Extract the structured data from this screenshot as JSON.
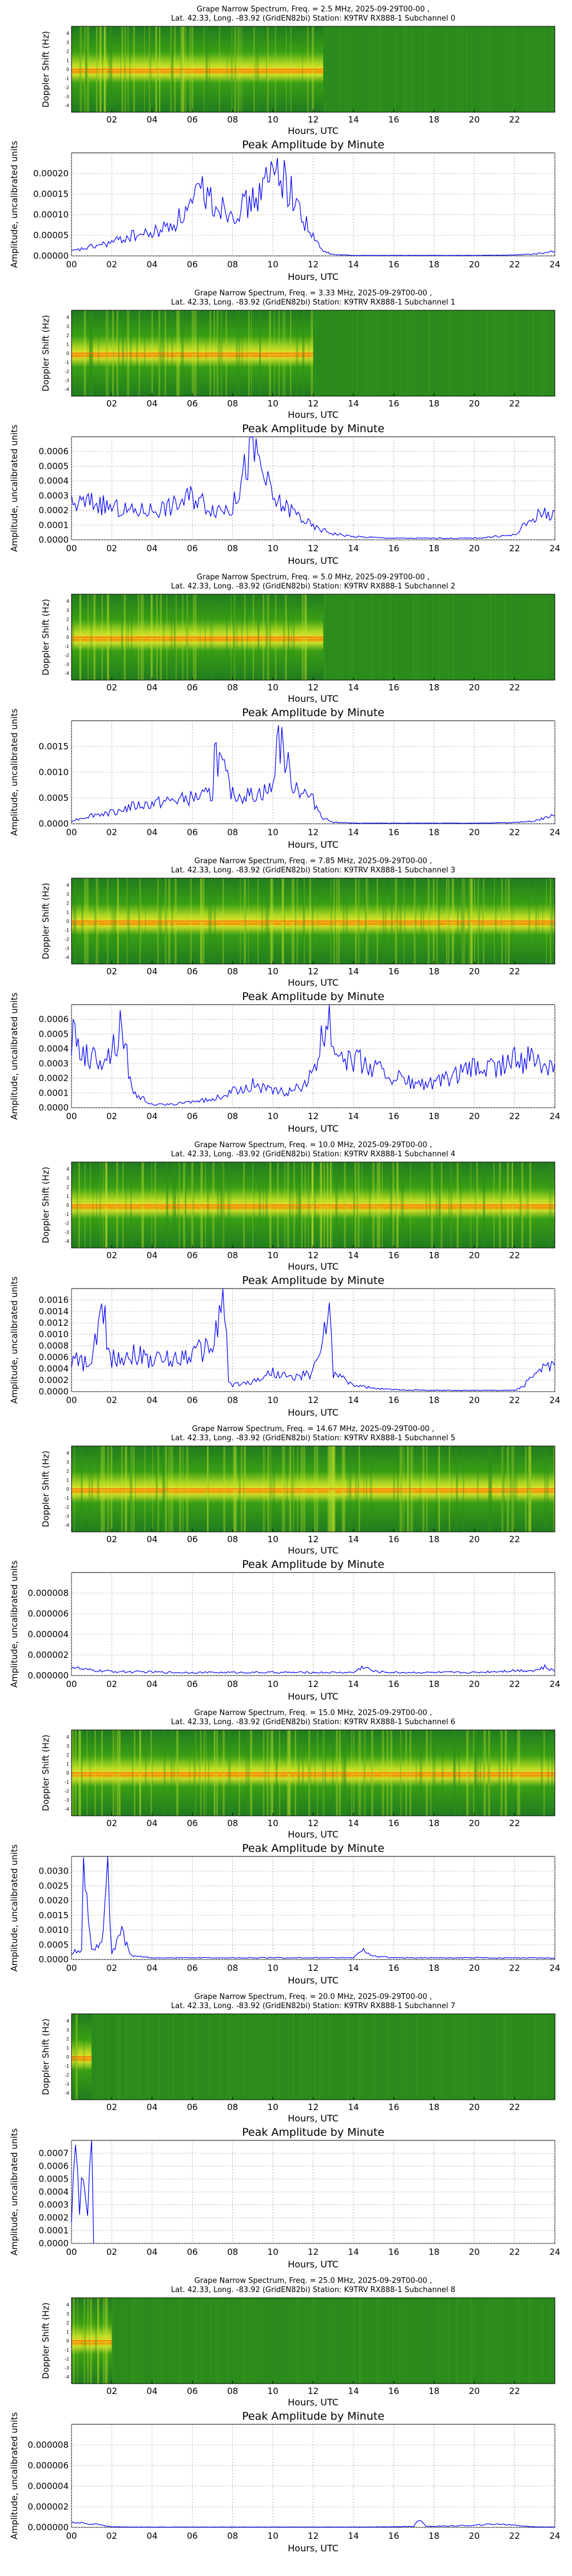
{
  "figure": {
    "spectrogram_common": {
      "ylabel": "Doppler Shift (Hz)",
      "xlabel": "Hours, UTC",
      "xticks": [
        "02",
        "04",
        "06",
        "08",
        "10",
        "12",
        "14",
        "16",
        "18",
        "20",
        "22"
      ],
      "yticks": [
        "4",
        "3",
        "2",
        "1",
        "0",
        "-1",
        "-2",
        "-3",
        "-4"
      ],
      "colormap": [
        "#1f7a1f",
        "#39a10f",
        "#8fcc1a",
        "#e8ee2a",
        "#ff9a00",
        "#e8331a"
      ]
    },
    "amplitude_common": {
      "title": "Peak Amplitude by Minute",
      "ylabel": "Amplitude, uncalibrated units",
      "xlabel": "Hours, UTC",
      "xticks": [
        "00",
        "02",
        "04",
        "06",
        "08",
        "10",
        "12",
        "14",
        "16",
        "18",
        "20",
        "22",
        "24"
      ],
      "line_color": "#0000ff",
      "grid": true
    }
  },
  "chart_data": [
    {
      "type": "heatmap",
      "title_line1": "Grape Narrow Spectrum, Freq. = 2.5 MHz, 2025-09-29T00-00 ,",
      "title_line2": "Lat.  42.33, Long. -83.92 (GridEN82bi) Station: K9TRV RX888-1 Subchannel 0",
      "active_hours": [
        0,
        12.5
      ]
    },
    {
      "type": "line",
      "x_range": [
        0,
        24
      ],
      "ylim": [
        0,
        0.00023
      ],
      "yticks": [
        "0.00000",
        "0.00005",
        "0.00010",
        "0.00015",
        "0.00020"
      ],
      "x": [
        0,
        1,
        2,
        3,
        4,
        5,
        6,
        6.5,
        7,
        8,
        9,
        10,
        10.3,
        11,
        12,
        12.5,
        13,
        14,
        16,
        18,
        20,
        22,
        23,
        24
      ],
      "y": [
        1e-05,
        2e-05,
        3e-05,
        4.5e-05,
        5e-05,
        7e-05,
        0.00011,
        0.00015,
        0.00012,
        0.0001,
        0.00012,
        0.00018,
        0.0002,
        0.00013,
        4e-05,
        1e-05,
        3e-06,
        1e-06,
        1e-06,
        1e-06,
        1e-06,
        2e-06,
        4e-06,
        1e-05
      ]
    },
    {
      "type": "heatmap",
      "title_line1": "Grape Narrow Spectrum, Freq. = 3.33 MHz, 2025-09-29T00-00 ,",
      "title_line2": "Lat.  42.33, Long. -83.92 (GridEN82bi) Station: K9TRV RX888-1 Subchannel 1",
      "active_hours": [
        0,
        12
      ]
    },
    {
      "type": "line",
      "x_range": [
        0,
        24
      ],
      "ylim": [
        0,
        0.00065
      ],
      "yticks": [
        "0.0000",
        "0.0001",
        "0.0002",
        "0.0003",
        "0.0004",
        "0.0005",
        "0.0006"
      ],
      "x": [
        0,
        1,
        2,
        3,
        4,
        5,
        6,
        7,
        8,
        9,
        10,
        11,
        12,
        13,
        14,
        16,
        18,
        20,
        22,
        23,
        24
      ],
      "y": [
        0.00022,
        0.00024,
        0.0002,
        0.00018,
        0.00019,
        0.00021,
        0.00028,
        0.0002,
        0.0002,
        0.0006,
        0.00025,
        0.00018,
        8e-05,
        4e-05,
        2e-05,
        1e-05,
        1e-05,
        1e-05,
        3e-05,
        0.00015,
        0.00018
      ]
    },
    {
      "type": "heatmap",
      "title_line1": "Grape Narrow Spectrum, Freq. = 5.0 MHz, 2025-09-29T00-00 ,",
      "title_line2": "Lat.  42.33, Long. -83.92 (GridEN82bi) Station: K9TRV RX888-1 Subchannel 2",
      "active_hours": [
        0,
        12.5
      ]
    },
    {
      "type": "line",
      "x_range": [
        0,
        24
      ],
      "ylim": [
        0,
        0.0018
      ],
      "yticks": [
        "0.0000",
        "0.0005",
        "0.0010",
        "0.0015"
      ],
      "x": [
        0,
        1,
        2,
        3,
        4,
        5,
        6,
        7,
        7.1,
        8,
        9,
        10,
        10.2,
        11,
        12,
        12.5,
        13,
        14,
        16,
        18,
        20,
        22,
        23,
        24
      ],
      "y": [
        5e-05,
        0.00015,
        0.0002,
        0.0003,
        0.00035,
        0.0004,
        0.00045,
        0.0005,
        0.0013,
        0.0005,
        0.0005,
        0.0006,
        0.0016,
        0.0007,
        0.0004,
        0.0001,
        3e-05,
        1e-05,
        1e-05,
        1e-05,
        1e-05,
        2e-05,
        5e-05,
        0.00015
      ]
    },
    {
      "type": "heatmap",
      "title_line1": "Grape Narrow Spectrum, Freq. = 7.85 MHz, 2025-09-29T00-00 ,",
      "title_line2": "Lat.  42.33, Long. -83.92 (GridEN82bi) Station: K9TRV RX888-1 Subchannel 3",
      "active_hours": [
        0,
        24
      ]
    },
    {
      "type": "line",
      "x_range": [
        0,
        24
      ],
      "ylim": [
        0,
        0.00065
      ],
      "yticks": [
        "0.0000",
        "0.0001",
        "0.0002",
        "0.0003",
        "0.0004",
        "0.0005",
        "0.0006"
      ],
      "x": [
        0,
        1,
        2,
        2.5,
        3,
        4,
        5,
        6,
        7,
        8,
        9,
        10,
        11,
        12,
        12.8,
        13,
        14,
        15,
        16,
        17,
        18,
        19,
        20,
        21,
        22,
        23,
        24
      ],
      "y": [
        0.00045,
        0.0003,
        0.00035,
        0.00055,
        0.0001,
        2e-05,
        2e-05,
        4e-05,
        5e-05,
        0.0001,
        0.00015,
        0.0001,
        0.0001,
        0.0002,
        0.0006,
        0.0004,
        0.0003,
        0.00025,
        0.0002,
        0.00015,
        0.00015,
        0.0002,
        0.00025,
        0.00025,
        0.0003,
        0.0003,
        0.00028
      ]
    },
    {
      "type": "heatmap",
      "title_line1": "Grape Narrow Spectrum, Freq. = 10.0 MHz, 2025-09-29T00-00 ,",
      "title_line2": "Lat.  42.33, Long. -83.92 (GridEN82bi) Station: K9TRV RX888-1 Subchannel 4",
      "active_hours": [
        0,
        24
      ]
    },
    {
      "type": "line",
      "x_range": [
        0,
        24
      ],
      "ylim": [
        0,
        0.0016
      ],
      "yticks": [
        "0.0000",
        "0.0002",
        "0.0004",
        "0.0006",
        "0.0008",
        "0.0010",
        "0.0012",
        "0.0014",
        "0.0016"
      ],
      "x": [
        0,
        1,
        1.5,
        2,
        3,
        4,
        5,
        6,
        7,
        7.6,
        7.8,
        8,
        9,
        10,
        11,
        12,
        12.8,
        13,
        14,
        15,
        16,
        18,
        20,
        22,
        22.5,
        23,
        24
      ],
      "y": [
        0.0005,
        0.0004,
        0.0013,
        0.0005,
        0.0006,
        0.0005,
        0.0005,
        0.0006,
        0.0007,
        0.0015,
        0.00015,
        0.0001,
        0.00015,
        0.0003,
        0.0002,
        0.0003,
        0.0012,
        0.0003,
        0.0001,
        5e-05,
        3e-05,
        2e-05,
        2e-05,
        2e-05,
        0.0001,
        0.0003,
        0.0004
      ]
    },
    {
      "type": "heatmap",
      "title_line1": "Grape Narrow Spectrum, Freq. = 14.67 MHz, 2025-09-29T00-00 ,",
      "title_line2": "Lat.  42.33, Long. -83.92 (GridEN82bi) Station: K9TRV RX888-1 Subchannel 5",
      "active_hours": [
        0,
        24
      ]
    },
    {
      "type": "line",
      "x_range": [
        0,
        24
      ],
      "ylim": [
        0,
        0.0001
      ],
      "yticks": [
        "0.000000",
        "0.000002",
        "0.000004",
        "0.000006",
        "0.000008"
      ],
      "x": [
        0,
        0.5,
        1,
        2,
        3,
        4,
        5,
        6,
        7,
        8,
        9,
        10,
        11,
        12,
        13,
        14,
        14.5,
        15,
        16,
        17,
        18,
        19,
        20,
        21,
        22,
        23,
        23.5,
        24
      ],
      "y": [
        9e-06,
        6e-06,
        5e-06,
        4e-06,
        3.5e-06,
        3.5e-06,
        3e-06,
        3e-06,
        3e-06,
        3e-06,
        3e-06,
        3e-06,
        3e-06,
        3e-06,
        3e-06,
        3e-06,
        9e-06,
        4e-06,
        3e-06,
        3e-06,
        3e-06,
        3e-06,
        3e-06,
        4e-06,
        5e-06,
        5e-06,
        8e-06,
        4e-06
      ]
    },
    {
      "type": "heatmap",
      "title_line1": "Grape Narrow Spectrum, Freq. = 15.0 MHz, 2025-09-29T00-00 ,",
      "title_line2": "Lat.  42.33, Long. -83.92 (GridEN82bi) Station: K9TRV RX888-1 Subchannel 6",
      "active_hours": [
        0,
        24
      ]
    },
    {
      "type": "line",
      "x_range": [
        0,
        24
      ],
      "ylim": [
        0,
        0.0031
      ],
      "yticks": [
        "0.0000",
        "0.0005",
        "0.0010",
        "0.0015",
        "0.0020",
        "0.0025",
        "0.0030"
      ],
      "x": [
        0,
        0.5,
        0.6,
        1,
        1.5,
        1.8,
        2,
        2.5,
        3,
        4,
        6,
        8,
        10,
        12,
        14,
        14.5,
        15,
        16,
        18,
        20,
        22,
        24
      ],
      "y": [
        0.0002,
        0.0003,
        0.0027,
        0.0003,
        0.0005,
        0.0027,
        0.0002,
        0.0008,
        0.0001,
        5e-05,
        5e-05,
        5e-05,
        5e-05,
        5e-05,
        5e-05,
        0.0003,
        0.0001,
        5e-05,
        5e-05,
        5e-05,
        5e-05,
        5e-05
      ]
    },
    {
      "type": "heatmap",
      "title_line1": "Grape Narrow Spectrum, Freq. = 20.0 MHz, 2025-09-29T00-00 ,",
      "title_line2": "Lat.  42.33, Long. -83.92 (GridEN82bi) Station: K9TRV RX888-1 Subchannel 7",
      "active_hours": [
        0,
        1
      ]
    },
    {
      "type": "line",
      "x_range": [
        0,
        24
      ],
      "ylim": [
        0,
        0.0008
      ],
      "yticks": [
        "0.0000",
        "0.0001",
        "0.0002",
        "0.0003",
        "0.0004",
        "0.0005",
        "0.0006",
        "0.0007"
      ],
      "x": [
        0,
        0.2,
        0.4,
        0.6,
        0.8,
        1,
        1.1
      ],
      "y": [
        0.0002,
        0.0007,
        0.0003,
        0.0006,
        0.0002,
        0.00075,
        0.0
      ]
    },
    {
      "type": "heatmap",
      "title_line1": "Grape Narrow Spectrum, Freq. = 25.0 MHz, 2025-09-29T00-00 ,",
      "title_line2": "Lat.  42.33, Long. -83.92 (GridEN82bi) Station: K9TRV RX888-1 Subchannel 8",
      "active_hours": [
        0,
        2
      ]
    },
    {
      "type": "line",
      "x_range": [
        0,
        24
      ],
      "ylim": [
        0,
        0.0001
      ],
      "yticks": [
        "0.000000",
        "0.000002",
        "0.000004",
        "0.000006",
        "0.000008"
      ],
      "x": [
        0,
        0.5,
        1,
        1.5,
        2,
        3,
        4,
        6,
        8,
        10,
        12,
        14,
        16,
        17,
        17.3,
        17.6,
        18,
        19,
        20,
        21,
        21.5,
        22,
        23,
        24
      ],
      "y": [
        5e-06,
        4e-06,
        3.5e-06,
        2e-06,
        5e-07,
        3e-07,
        3e-07,
        3e-07,
        3e-07,
        3e-07,
        3e-07,
        3e-07,
        5e-07,
        1e-06,
        8.8e-06,
        1e-06,
        1e-06,
        1.5e-06,
        2e-06,
        3e-06,
        3.2e-06,
        2e-06,
        4e-07,
        3e-07
      ]
    }
  ]
}
